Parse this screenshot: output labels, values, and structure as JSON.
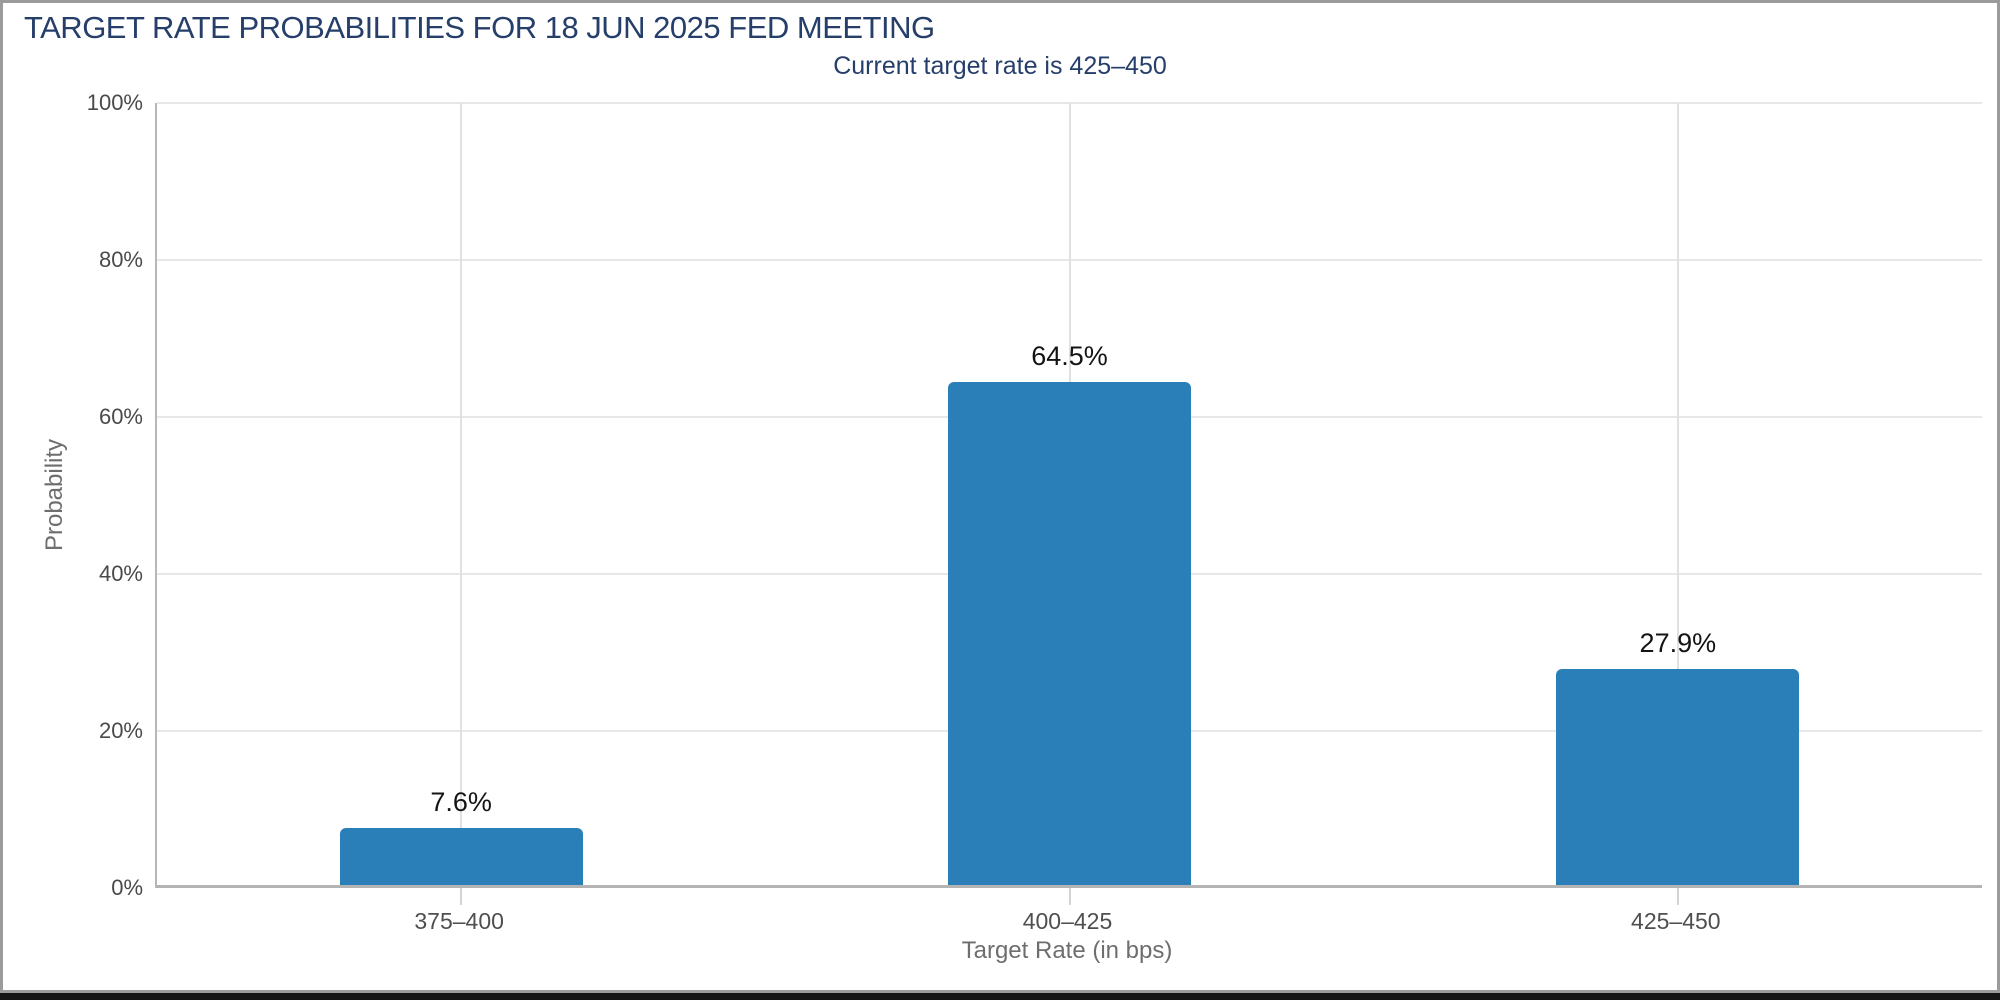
{
  "window": {
    "background": "#ffffff",
    "frame_border_color": "#9b9b9b",
    "bottom_bar_color": "#141414"
  },
  "chart_data": {
    "type": "bar",
    "title": "TARGET RATE PROBABILITIES FOR 18 JUN 2025 FED MEETING",
    "subtitle": "Current target rate is 425–450",
    "categories": [
      "375–400",
      "400–425",
      "425–450"
    ],
    "values": [
      7.6,
      64.5,
      27.9
    ],
    "value_labels": [
      "7.6%",
      "64.5%",
      "27.9%"
    ],
    "xlabel": "Target Rate (in bps)",
    "ylabel": "Probability",
    "ylim": [
      0,
      100
    ],
    "y_ticks": [
      "0%",
      "20%",
      "40%",
      "60%",
      "80%",
      "100%"
    ],
    "grid": true,
    "legend": "none",
    "colors": {
      "bar": "#2b7fb8",
      "title": "#253e6a",
      "value_label": "#141414",
      "tick_label": "#4a4a4a",
      "axis_title": "#6e6e6e",
      "axis_line": "#b3b3b3",
      "gridline": "#e7e7e7"
    }
  }
}
